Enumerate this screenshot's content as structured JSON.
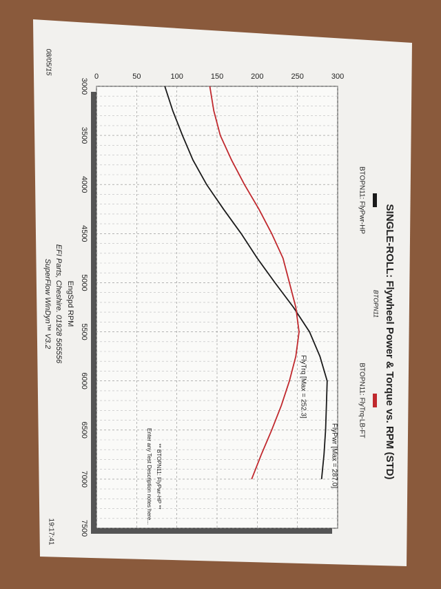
{
  "chart_data": {
    "type": "line",
    "title": "SINGLE-ROLL: Flywheel Power & Torque vs. RPM (STD)",
    "subtitle": "BTOPN11",
    "x_label": "EngSpd RPM",
    "footer": [
      "EFI Parts, Cheshire. 01928 565556",
      "SuperFlow WinDyn™ V3.2"
    ],
    "date": "08/05/15",
    "time": "19:17:41",
    "annotations": [
      "FlyPwr [Max = 287.0]",
      "FlyTrq [Max = 252.3]",
      "** BTOPN11: FlyPwr-HP **",
      "Enter any Test Description notes here..."
    ],
    "x": [
      3000,
      3250,
      3500,
      3750,
      4000,
      4250,
      4500,
      4750,
      5000,
      5250,
      5500,
      5750,
      6000,
      6250,
      6500,
      6750,
      7000
    ],
    "series": [
      {
        "name": "BTOPN11: FlyPwr-HP",
        "color": "#1a1a1a",
        "values": [
          85,
          95,
          107,
          120,
          137,
          158,
          180,
          200,
          222,
          245,
          265,
          278,
          287,
          286,
          285,
          283,
          280
        ]
      },
      {
        "name": "BTOPN11: FlyTrq-LB-FT",
        "color": "#c0282d",
        "values": [
          141,
          146,
          154,
          168,
          184,
          202,
          218,
          232,
          240,
          248,
          252,
          248,
          240,
          230,
          218,
          205,
          193
        ]
      }
    ],
    "xlim": [
      3000,
      7500
    ],
    "xticks": [
      3000,
      3500,
      4000,
      4500,
      5000,
      5500,
      6000,
      6500,
      7000,
      7500
    ],
    "ylim": [
      0,
      300
    ],
    "yticks": [
      0,
      50,
      100,
      150,
      200,
      250,
      300
    ],
    "grid": true
  }
}
